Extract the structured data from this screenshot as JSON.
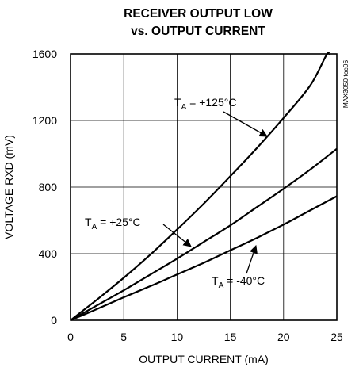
{
  "chart_data": {
    "type": "line",
    "title_line1": "RECEIVER OUTPUT LOW",
    "title_line2": "vs. OUTPUT CURRENT",
    "xlabel": "OUTPUT CURRENT (mA)",
    "ylabel": "VOLTAGE RXD (mV)",
    "xlim": [
      0,
      25
    ],
    "ylim": [
      0,
      1600
    ],
    "x_ticks": [
      "0",
      "5",
      "10",
      "15",
      "20",
      "25"
    ],
    "y_ticks": [
      "0",
      "400",
      "800",
      "1200",
      "1600"
    ],
    "grid": true,
    "figure_code": "MAX3050 toc06",
    "series": [
      {
        "name": "TA = +125°C",
        "label_main": "T",
        "label_sub": "A",
        "label_rest": " = +125°C",
        "x": [
          0,
          2.5,
          5,
          7.5,
          10,
          12.5,
          15,
          17.5,
          20,
          22.5,
          24,
          24.3
        ],
        "values": [
          0,
          125,
          255,
          395,
          545,
          700,
          865,
          1035,
          1215,
          1410,
          1590,
          1600
        ]
      },
      {
        "name": "TA = +25°C",
        "label_main": "T",
        "label_sub": "A",
        "label_rest": " = +25°C",
        "x": [
          0,
          2.5,
          5,
          7.5,
          10,
          12.5,
          15,
          17.5,
          20,
          22.5,
          25
        ],
        "values": [
          0,
          90,
          180,
          275,
          370,
          470,
          570,
          680,
          790,
          905,
          1030
        ]
      },
      {
        "name": "TA = -40°C",
        "label_main": "T",
        "label_sub": "A",
        "label_rest": " = -40°C",
        "x": [
          0,
          2.5,
          5,
          7.5,
          10,
          12.5,
          15,
          17.5,
          20,
          22.5,
          25
        ],
        "values": [
          0,
          68,
          138,
          205,
          275,
          345,
          420,
          495,
          575,
          660,
          745
        ]
      }
    ]
  }
}
